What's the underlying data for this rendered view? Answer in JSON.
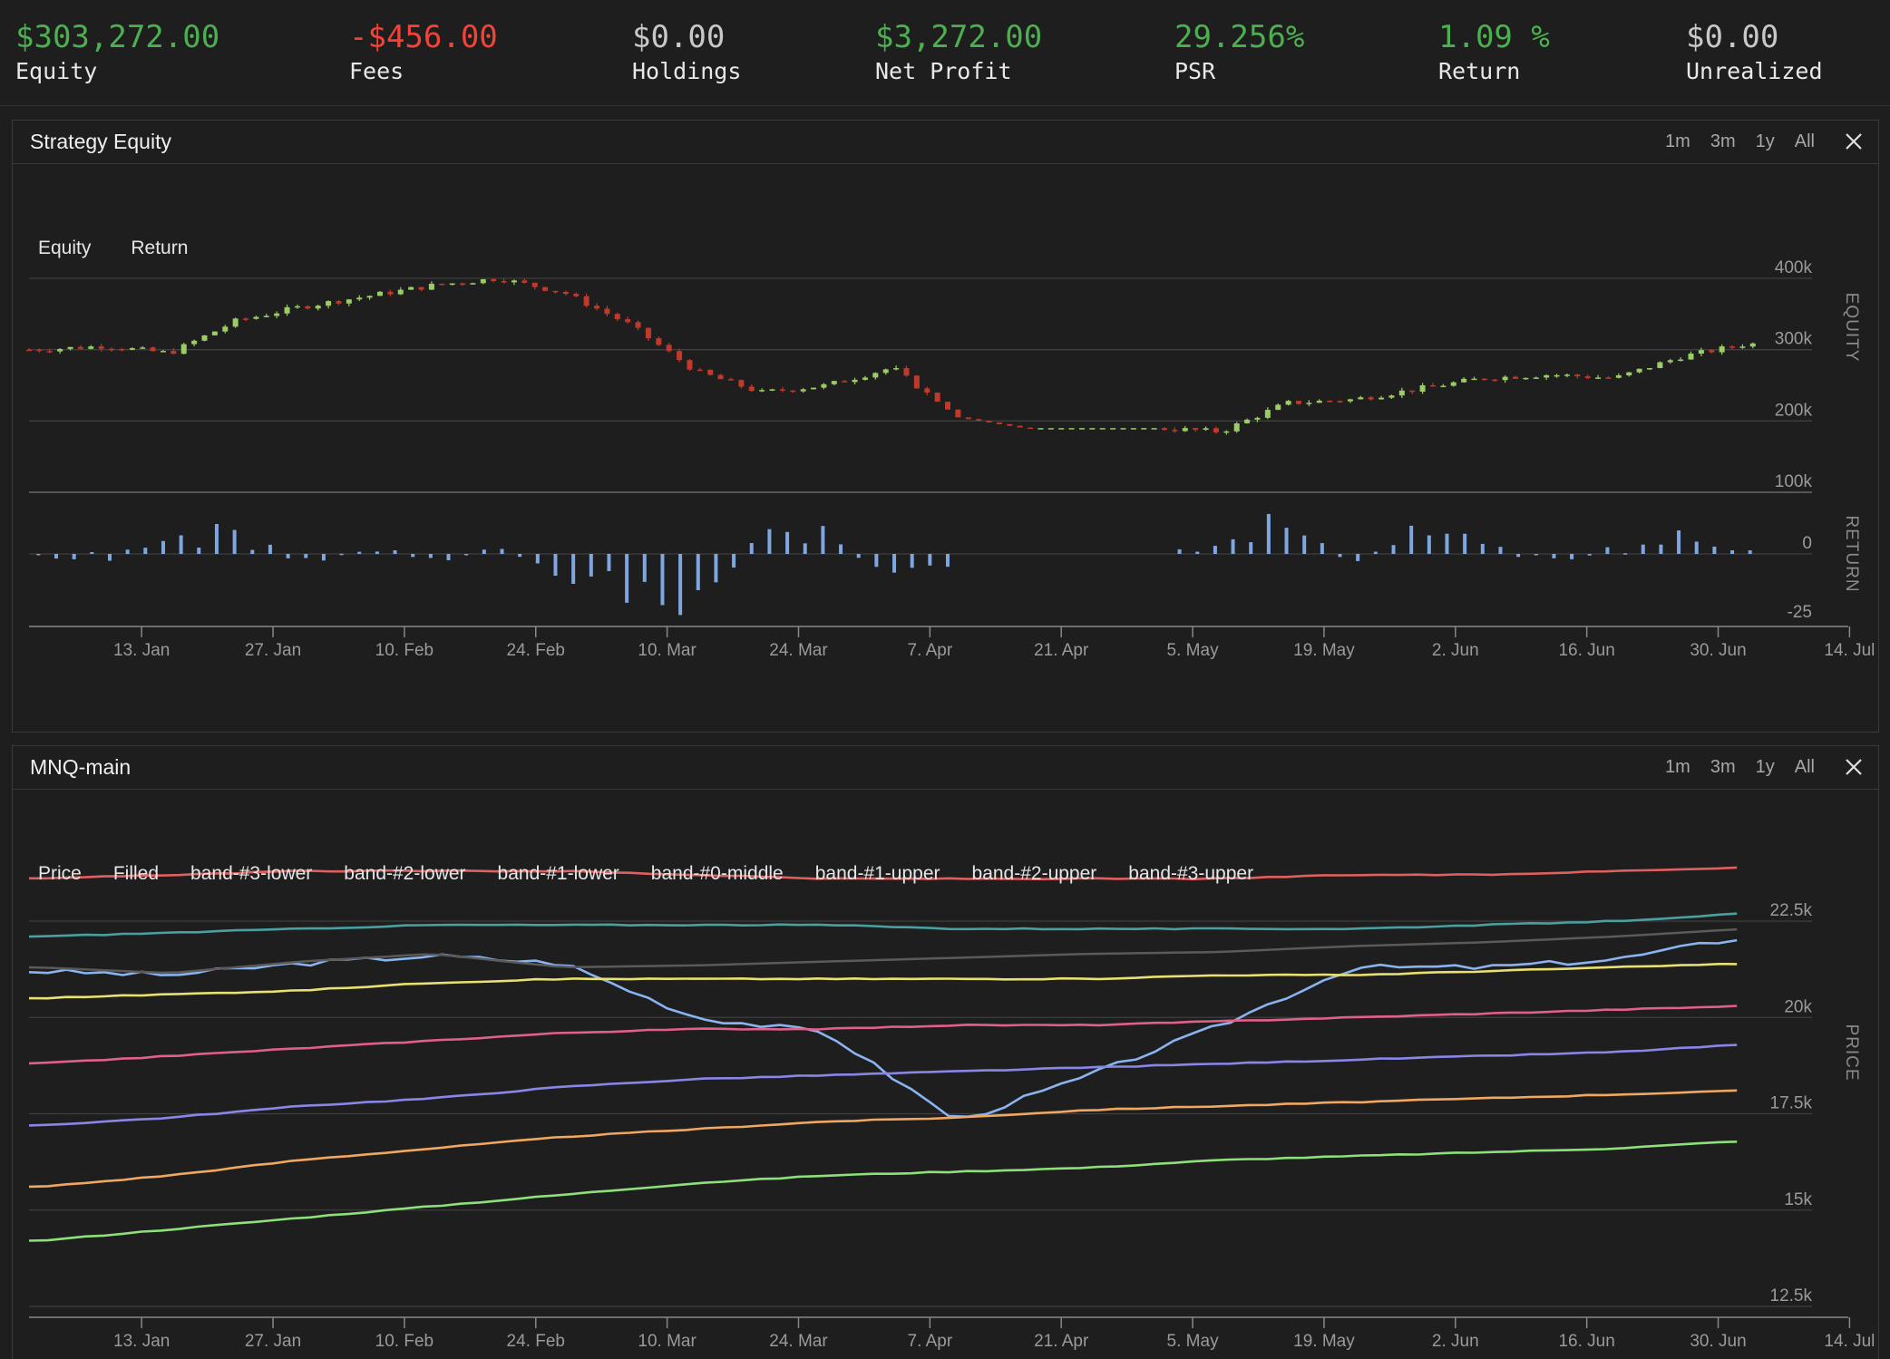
{
  "colors": {
    "background": "#1e1e1e",
    "positive": "#4caf50",
    "negative": "#f44336",
    "neutral": "#c8c8c8",
    "candle_up": "#9ccc65",
    "candle_down": "#c0392b",
    "return_bar": "#7ea6e0",
    "grid": "#444444"
  },
  "stats": [
    {
      "value": "$303,272.00",
      "label": "Equity",
      "tone": "positive"
    },
    {
      "value": "-$456.00",
      "label": "Fees",
      "tone": "negative"
    },
    {
      "value": "$0.00",
      "label": "Holdings",
      "tone": "neutral"
    },
    {
      "value": "$3,272.00",
      "label": "Net Profit",
      "tone": "positive"
    },
    {
      "value": "29.256%",
      "label": "PSR",
      "tone": "positive"
    },
    {
      "value": "1.09 %",
      "label": "Return",
      "tone": "positive"
    },
    {
      "value": "$0.00",
      "label": "Unrealized",
      "tone": "neutral"
    }
  ],
  "panels": {
    "equity": {
      "title": "Strategy Equity",
      "ranges": [
        "1m",
        "3m",
        "1y",
        "All"
      ],
      "legend": [
        "Equity",
        "Return"
      ],
      "y_axis_title": "EQUITY",
      "y2_axis_title": "RETURN",
      "y_ticks": [
        "400k",
        "300k",
        "200k",
        "100k"
      ],
      "y2_ticks": [
        "0",
        "-25"
      ],
      "x_ticks": [
        "13. Jan",
        "27. Jan",
        "10. Feb",
        "24. Feb",
        "10. Mar",
        "24. Mar",
        "7. Apr",
        "21. Apr",
        "5. May",
        "19. May",
        "2. Jun",
        "16. Jun",
        "30. Jun",
        "14. Jul"
      ]
    },
    "price": {
      "title": "MNQ-main",
      "ranges": [
        "1m",
        "3m",
        "1y",
        "All"
      ],
      "legend": [
        "Price",
        "Filled",
        "band-#3-lower",
        "band-#2-lower",
        "band-#1-lower",
        "band-#0-middle",
        "band-#1-upper",
        "band-#2-upper",
        "band-#3-upper"
      ],
      "y_axis_title": "PRICE",
      "y_ticks": [
        "22.5k",
        "20k",
        "17.5k",
        "15k",
        "12.5k"
      ],
      "x_ticks": [
        "13. Jan",
        "27. Jan",
        "10. Feb",
        "24. Feb",
        "10. Mar",
        "24. Mar",
        "7. Apr",
        "21. Apr",
        "5. May",
        "19. May",
        "2. Jun",
        "16. Jun",
        "30. Jun",
        "14. Jul"
      ]
    }
  },
  "chart_data": [
    {
      "type": "line",
      "title": "Strategy Equity",
      "series": [
        {
          "name": "Equity",
          "x": [
            "1/2",
            "1/9",
            "1/16",
            "1/23",
            "1/30",
            "2/6",
            "2/13",
            "2/20",
            "2/27",
            "3/6",
            "3/13",
            "3/20",
            "3/27",
            "4/3",
            "4/10",
            "4/17",
            "4/24",
            "5/1",
            "5/8",
            "5/15",
            "5/22",
            "5/29",
            "6/5",
            "6/12",
            "6/19",
            "6/26",
            "7/3"
          ],
          "values": [
            300,
            305,
            295,
            340,
            360,
            375,
            390,
            400,
            380,
            335,
            270,
            240,
            250,
            275,
            205,
            190,
            190,
            190,
            185,
            225,
            230,
            245,
            260,
            265,
            260,
            290,
            308
          ]
        },
        {
          "name": "Return",
          "values": [
            0,
            -3,
            7,
            12,
            -4,
            3,
            -2,
            2,
            -10,
            -15,
            -25,
            8,
            10,
            -12,
            -5,
            0,
            0,
            0,
            8,
            15,
            -6,
            12,
            4,
            -3,
            2,
            8,
            1
          ]
        }
      ],
      "ylim": [
        100,
        400
      ],
      "y2lim": [
        -25,
        10
      ]
    },
    {
      "type": "line",
      "title": "MNQ-main",
      "x": [
        "1/2",
        "1/16",
        "1/30",
        "2/13",
        "2/27",
        "3/13",
        "3/27",
        "4/10",
        "4/24",
        "5/8",
        "5/22",
        "6/5",
        "6/19",
        "7/3"
      ],
      "series": [
        {
          "name": "Price",
          "values": [
            21200,
            21100,
            21400,
            21600,
            21400,
            20000,
            19600,
            17300,
            18500,
            19800,
            21300,
            21300,
            21500,
            22100
          ]
        },
        {
          "name": "Filled",
          "values": [
            21300,
            21150,
            21450,
            21650,
            21300,
            21350,
            21450,
            21550,
            21650,
            21700,
            21850,
            21950,
            22100,
            22300
          ]
        },
        {
          "name": "band-#3-lower",
          "values": [
            14200,
            14500,
            14800,
            15100,
            15400,
            15700,
            15900,
            16000,
            16100,
            16300,
            16400,
            16500,
            16600,
            16800
          ]
        },
        {
          "name": "band-#2-lower",
          "values": [
            15600,
            15900,
            16300,
            16600,
            16900,
            17100,
            17300,
            17400,
            17600,
            17700,
            17800,
            17900,
            18000,
            18100
          ]
        },
        {
          "name": "band-#1-lower",
          "values": [
            17200,
            17400,
            17700,
            17900,
            18200,
            18400,
            18500,
            18600,
            18700,
            18800,
            18900,
            19000,
            19100,
            19300
          ]
        },
        {
          "name": "band-#0-middle",
          "values": [
            18800,
            19000,
            19200,
            19400,
            19600,
            19700,
            19700,
            19800,
            19800,
            19900,
            20000,
            20100,
            20200,
            20300
          ]
        },
        {
          "name": "band-#1-upper",
          "values": [
            20500,
            20600,
            20700,
            20900,
            21000,
            21000,
            21000,
            21000,
            21000,
            21100,
            21100,
            21200,
            21300,
            21400
          ]
        },
        {
          "name": "band-#2-upper",
          "values": [
            22100,
            22200,
            22300,
            22400,
            22400,
            22400,
            22400,
            22300,
            22300,
            22300,
            22300,
            22400,
            22500,
            22700
          ]
        },
        {
          "name": "band-#3-upper",
          "values": [
            23600,
            23700,
            23800,
            23800,
            23800,
            23700,
            23600,
            23600,
            23600,
            23600,
            23700,
            23700,
            23800,
            23900
          ]
        }
      ],
      "ylim": [
        12500,
        22500
      ]
    }
  ]
}
